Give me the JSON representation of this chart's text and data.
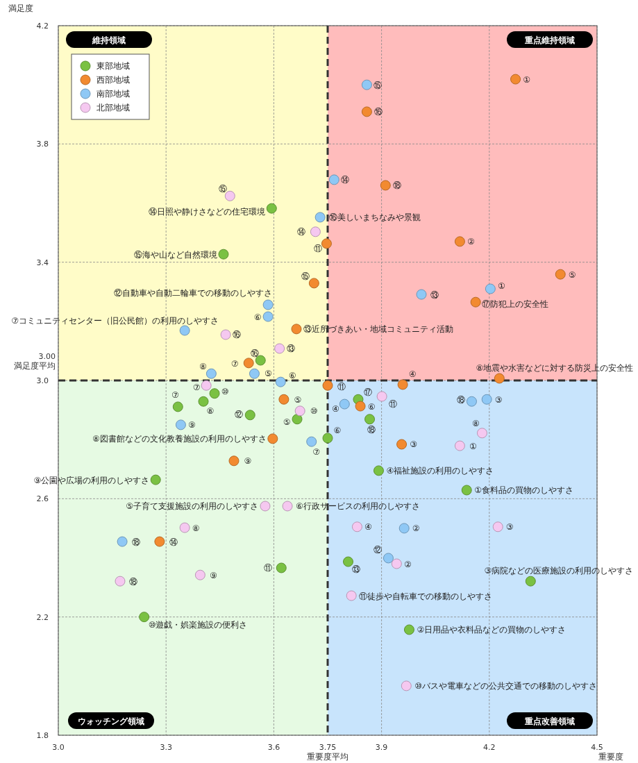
{
  "chart_data": {
    "type": "scatter",
    "xlabel": "重要度",
    "ylabel": "満足度",
    "xlim": [
      3.0,
      4.5
    ],
    "ylim": [
      1.8,
      4.2
    ],
    "xticks": [
      {
        "value": 3,
        "label": "3.0"
      },
      3.3,
      3.6,
      3.9,
      4.2,
      4.5
    ],
    "yticks": [
      1.8,
      2.2,
      2.6,
      {
        "value": 3,
        "label": "3.0"
      },
      3.4,
      3.8,
      4.2
    ],
    "grid": true,
    "legend": "top left",
    "marker": "circle",
    "ref_lines": [
      {
        "axis": "x",
        "value": 3.75,
        "label": "3.75\n重要度平均",
        "line_style": "dashed",
        "color": "#333333"
      },
      {
        "axis": "y",
        "value": 3.0,
        "label": "3.00\n満足度平均",
        "line_style": "dashed",
        "color": "#333333"
      }
    ],
    "series": [
      {
        "name": "東部地域",
        "color": "#7ac143",
        "x": [
          3.594,
          3.46,
          3.563,
          3.333,
          3.404,
          3.435,
          3.534,
          3.665,
          3.271,
          3.75,
          3.835,
          3.867,
          3.892,
          4.137,
          3.621,
          3.239,
          4.315,
          3.977,
          3.807
        ],
        "values": [
          3.582,
          3.427,
          3.068,
          2.911,
          2.929,
          2.956,
          2.883,
          2.869,
          2.664,
          2.805,
          2.936,
          2.869,
          2.695,
          2.629,
          2.366,
          2.2,
          2.321,
          2.157,
          2.387
        ]
      },
      {
        "name": "西部地域",
        "color": "#f28a30",
        "x": [
          4.273,
          3.859,
          3.911,
          4.118,
          3.747,
          4.398,
          3.712,
          4.162,
          3.663,
          3.53,
          4.228,
          3.75,
          3.959,
          3.628,
          3.841,
          3.956,
          3.597,
          3.489,
          3.282
        ],
        "values": [
          4.019,
          3.909,
          3.66,
          3.47,
          3.463,
          3.359,
          3.329,
          3.265,
          3.174,
          3.059,
          3.007,
          2.983,
          2.986,
          2.936,
          2.913,
          2.784,
          2.803,
          2.728,
          2.455
        ]
      },
      {
        "name": "南部地域",
        "color": "#8fc8f5",
        "x": [
          3.859,
          3.768,
          3.729,
          4.203,
          4.011,
          3.584,
          3.584,
          3.352,
          3.426,
          3.546,
          3.619,
          3.797,
          4.151,
          4.193,
          3.341,
          3.705,
          3.178,
          3.963,
          3.919
        ],
        "values": [
          4.0,
          3.679,
          3.552,
          3.31,
          3.291,
          3.256,
          3.216,
          3.169,
          3.023,
          3.023,
          2.995,
          2.92,
          2.929,
          2.936,
          2.85,
          2.793,
          2.455,
          2.5,
          2.399
        ]
      },
      {
        "name": "北部地域",
        "color": "#f5c8f0",
        "x": [
          3.478,
          3.716,
          3.466,
          3.616,
          3.412,
          3.673,
          3.901,
          4.18,
          4.118,
          3.576,
          3.638,
          3.352,
          3.395,
          3.172,
          3.832,
          4.224,
          3.942,
          3.816,
          3.969
        ],
        "values": [
          3.624,
          3.503,
          3.155,
          3.108,
          2.983,
          2.897,
          2.946,
          2.822,
          2.779,
          2.575,
          2.575,
          2.502,
          2.342,
          2.321,
          2.505,
          2.505,
          2.38,
          2.272,
          1.967
        ]
      }
    ],
    "annotations": [
      "維持領域",
      "重点維持領域",
      "ウォッチング領域",
      "重点改善領域",
      {
        "text": "⑭日照や静けさなどの住宅環境",
        "x": 3.594,
        "y": 3.582
      },
      {
        "text": "⑮海や山など自然環境",
        "x": 3.46,
        "y": 3.427
      },
      {
        "text": "⑯",
        "x": 3.563,
        "y": 3.068
      },
      {
        "text": "⑦",
        "x": 3.333,
        "y": 2.911
      },
      {
        "text": "⑧",
        "x": 3.404,
        "y": 2.929
      },
      {
        "text": "⑩",
        "x": 3.435,
        "y": 2.956
      },
      {
        "text": "⑫",
        "x": 3.534,
        "y": 2.883
      },
      {
        "text": "⑤",
        "x": 3.665,
        "y": 2.869
      },
      {
        "text": "⑨公園や広場の利用のしやすさ",
        "x": 3.271,
        "y": 2.664
      },
      {
        "text": "⑥",
        "x": 3.75,
        "y": 2.805
      },
      {
        "text": "⑰",
        "x": 3.835,
        "y": 2.936
      },
      {
        "text": "⑱",
        "x": 3.867,
        "y": 2.869
      },
      {
        "text": "④福祉施設の利用のしやすさ",
        "x": 3.892,
        "y": 2.695
      },
      {
        "text": "①食料品の買物のしやすさ",
        "x": 4.137,
        "y": 2.629
      },
      {
        "text": "⑪",
        "x": 3.621,
        "y": 2.366
      },
      {
        "text": "⑩遊戯・娯楽施設の便利さ",
        "x": 3.239,
        "y": 2.2
      },
      {
        "text": "③病院などの医療施設の利用のしやすさ",
        "x": 4.315,
        "y": 2.321
      },
      {
        "text": "②日用品や衣料品などの買物のしやすさ",
        "x": 3.977,
        "y": 2.157
      },
      {
        "text": "⑬",
        "x": 3.807,
        "y": 2.387
      },
      {
        "text": "①",
        "x": 4.273,
        "y": 4.019
      },
      {
        "text": "⑯",
        "x": 3.859,
        "y": 3.909
      },
      {
        "text": "⑱",
        "x": 3.911,
        "y": 3.66
      },
      {
        "text": "②",
        "x": 4.118,
        "y": 3.47
      },
      {
        "text": "⑪",
        "x": 3.747,
        "y": 3.463
      },
      {
        "text": "⑤",
        "x": 4.398,
        "y": 3.359
      },
      {
        "text": "⑮",
        "x": 3.712,
        "y": 3.329
      },
      {
        "text": "⑰防犯上の安全性",
        "x": 4.162,
        "y": 3.265
      },
      {
        "text": "⑬近所づきあい・地域コミュニティ活動",
        "x": 3.663,
        "y": 3.174
      },
      {
        "text": "⑦",
        "x": 3.53,
        "y": 3.059
      },
      {
        "text": "⑧地震や水害などに対する防災上の安全性",
        "x": 4.228,
        "y": 3.007
      },
      {
        "text": "⑪",
        "x": 3.75,
        "y": 2.983
      },
      {
        "text": "④",
        "x": 3.959,
        "y": 2.986
      },
      {
        "text": "⑤",
        "x": 3.628,
        "y": 2.936
      },
      {
        "text": "⑥",
        "x": 3.841,
        "y": 2.913
      },
      {
        "text": "③",
        "x": 3.956,
        "y": 2.784
      },
      {
        "text": "⑧図書館などの文化教養施設の利用のしやすさ",
        "x": 3.597,
        "y": 2.803
      },
      {
        "text": "⑨",
        "x": 3.489,
        "y": 2.728
      },
      {
        "text": "⑭",
        "x": 3.282,
        "y": 2.455
      },
      {
        "text": "⑮",
        "x": 3.859,
        "y": 4.0
      },
      {
        "text": "⑭",
        "x": 3.768,
        "y": 3.679
      },
      {
        "text": "⑯美しいまちなみや景観",
        "x": 3.729,
        "y": 3.552
      },
      {
        "text": "①",
        "x": 4.203,
        "y": 3.31
      },
      {
        "text": "⑬",
        "x": 4.011,
        "y": 3.291
      },
      {
        "text": "⑫自動車や自動二輪車での移動のしやすさ",
        "x": 3.584,
        "y": 3.256
      },
      {
        "text": "⑥",
        "x": 3.584,
        "y": 3.216
      },
      {
        "text": "⑦コミュニティセンター（旧公民館）の利用のしやすさ",
        "x": 3.352,
        "y": 3.169
      },
      {
        "text": "⑧",
        "x": 3.426,
        "y": 3.023
      },
      {
        "text": "⑤",
        "x": 3.546,
        "y": 3.023
      },
      {
        "text": "⑥",
        "x": 3.619,
        "y": 2.995
      },
      {
        "text": "④",
        "x": 3.797,
        "y": 2.92
      },
      {
        "text": "⑱",
        "x": 4.151,
        "y": 2.929
      },
      {
        "text": "③",
        "x": 4.193,
        "y": 2.936
      },
      {
        "text": "⑨",
        "x": 3.341,
        "y": 2.85
      },
      {
        "text": "⑦",
        "x": 3.705,
        "y": 2.793
      },
      {
        "text": "⑱",
        "x": 3.178,
        "y": 2.455
      },
      {
        "text": "②",
        "x": 3.963,
        "y": 2.5
      },
      {
        "text": "⑫",
        "x": 3.919,
        "y": 2.399
      },
      {
        "text": "⑮",
        "x": 3.478,
        "y": 3.624
      },
      {
        "text": "⑭",
        "x": 3.716,
        "y": 3.503
      },
      {
        "text": "⑯",
        "x": 3.466,
        "y": 3.155
      },
      {
        "text": "⑬",
        "x": 3.616,
        "y": 3.108
      },
      {
        "text": "⑦",
        "x": 3.412,
        "y": 2.983
      },
      {
        "text": "⑩",
        "x": 3.673,
        "y": 2.897
      },
      {
        "text": "⑪",
        "x": 3.901,
        "y": 2.946
      },
      {
        "text": "⑧",
        "x": 4.18,
        "y": 2.822
      },
      {
        "text": "①",
        "x": 4.118,
        "y": 2.779
      },
      {
        "text": "⑤子育て支援施設の利用のしやすさ",
        "x": 3.576,
        "y": 2.575
      },
      {
        "text": "⑥行政サービスの利用のしやすさ",
        "x": 3.638,
        "y": 2.575
      },
      {
        "text": "⑧",
        "x": 3.352,
        "y": 2.502
      },
      {
        "text": "⑨",
        "x": 3.395,
        "y": 2.342
      },
      {
        "text": "⑱",
        "x": 3.172,
        "y": 2.321
      },
      {
        "text": "④",
        "x": 3.832,
        "y": 2.505
      },
      {
        "text": "③",
        "x": 4.224,
        "y": 2.505
      },
      {
        "text": "②",
        "x": 3.942,
        "y": 2.38
      },
      {
        "text": "⑪徒歩や自転車での移動のしやすさ",
        "x": 3.816,
        "y": 2.272
      },
      {
        "text": "⑩バスや電車などの公共交通での移動のしやすさ",
        "x": 3.969,
        "y": 1.967
      }
    ]
  }
}
